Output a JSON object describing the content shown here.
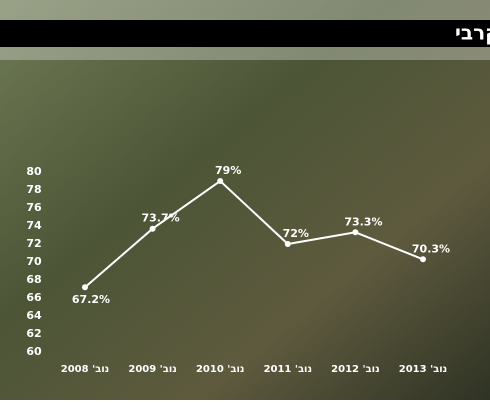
{
  "chart_data": {
    "type": "line",
    "title": "המוטיבציה לשירות קרבי",
    "categories": [
      "נוב' 2008",
      "נוב' 2009",
      "נוב' 2010",
      "נוב' 2011",
      "נוב' 2012",
      "נוב' 2013"
    ],
    "values": [
      67.2,
      73.7,
      79,
      72,
      73.3,
      70.3
    ],
    "value_labels": [
      "67.2%",
      "73.7%",
      "79%",
      "72%",
      "73.3%",
      "70.3%"
    ],
    "color": "#ffffff",
    "ylim": [
      60,
      80
    ],
    "yticks": [
      60,
      62,
      64,
      66,
      68,
      70,
      72,
      74,
      76,
      78,
      80
    ]
  }
}
